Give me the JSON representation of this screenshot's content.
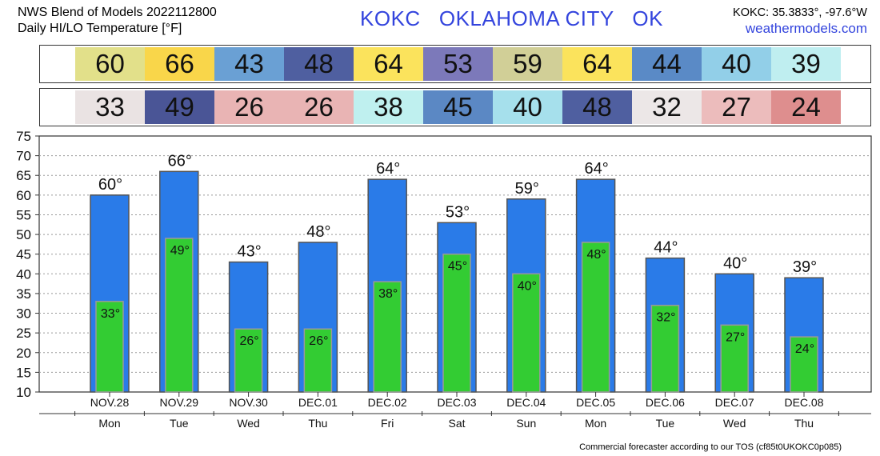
{
  "header": {
    "line1": "NWS Blend of Models 2022112800",
    "line2": "Daily HI/LO Temperature [°F]",
    "station": "KOKC   OKLAHOMA CITY   OK",
    "coords": "KOKC: 35.3833°, -97.6°W",
    "site": "weathermodels.com"
  },
  "hi_row": [
    {
      "value": "60",
      "color": "#e2e08a"
    },
    {
      "value": "66",
      "color": "#f9d64a"
    },
    {
      "value": "43",
      "color": "#6aa0d4"
    },
    {
      "value": "48",
      "color": "#4f5fa0"
    },
    {
      "value": "64",
      "color": "#fbe35c"
    },
    {
      "value": "53",
      "color": "#7c79ba"
    },
    {
      "value": "59",
      "color": "#d1cf97"
    },
    {
      "value": "64",
      "color": "#fbe35c"
    },
    {
      "value": "44",
      "color": "#5a8ac6"
    },
    {
      "value": "40",
      "color": "#92cfe8"
    },
    {
      "value": "39",
      "color": "#bfeef0"
    }
  ],
  "lo_row": [
    {
      "value": "33",
      "color": "#eae3e3"
    },
    {
      "value": "49",
      "color": "#4a5596"
    },
    {
      "value": "26",
      "color": "#e9b4b4"
    },
    {
      "value": "26",
      "color": "#e9b4b4"
    },
    {
      "value": "38",
      "color": "#bff0ef"
    },
    {
      "value": "45",
      "color": "#5b88c4"
    },
    {
      "value": "40",
      "color": "#a6e0ec"
    },
    {
      "value": "48",
      "color": "#4f5fa0"
    },
    {
      "value": "32",
      "color": "#ece7e7"
    },
    {
      "value": "27",
      "color": "#ecbcbc"
    },
    {
      "value": "24",
      "color": "#de8e8e"
    }
  ],
  "chart_data": {
    "type": "bar",
    "categories": [
      "NOV.28",
      "NOV.29",
      "NOV.30",
      "DEC.01",
      "DEC.02",
      "DEC.03",
      "DEC.04",
      "DEC.05",
      "DEC.06",
      "DEC.07",
      "DEC.08"
    ],
    "days": [
      "Mon",
      "Tue",
      "Wed",
      "Thu",
      "Fri",
      "Sat",
      "Sun",
      "Mon",
      "Tue",
      "Wed",
      "Thu"
    ],
    "series": [
      {
        "values": [
          60,
          66,
          43,
          48,
          64,
          53,
          59,
          64,
          44,
          40,
          39
        ],
        "color": "#2a7be8"
      },
      {
        "values": [
          33,
          49,
          26,
          26,
          38,
          45,
          40,
          48,
          32,
          27,
          24
        ],
        "color": "#33cc33"
      }
    ],
    "ylim": [
      10,
      75
    ],
    "yticks": [
      10,
      15,
      20,
      25,
      30,
      35,
      40,
      45,
      50,
      55,
      60,
      65,
      70,
      75
    ],
    "degree_symbol": "°",
    "grid": true
  },
  "footer": "Commercial forecaster according to our TOS (cf85t0UKOKC0p085)"
}
